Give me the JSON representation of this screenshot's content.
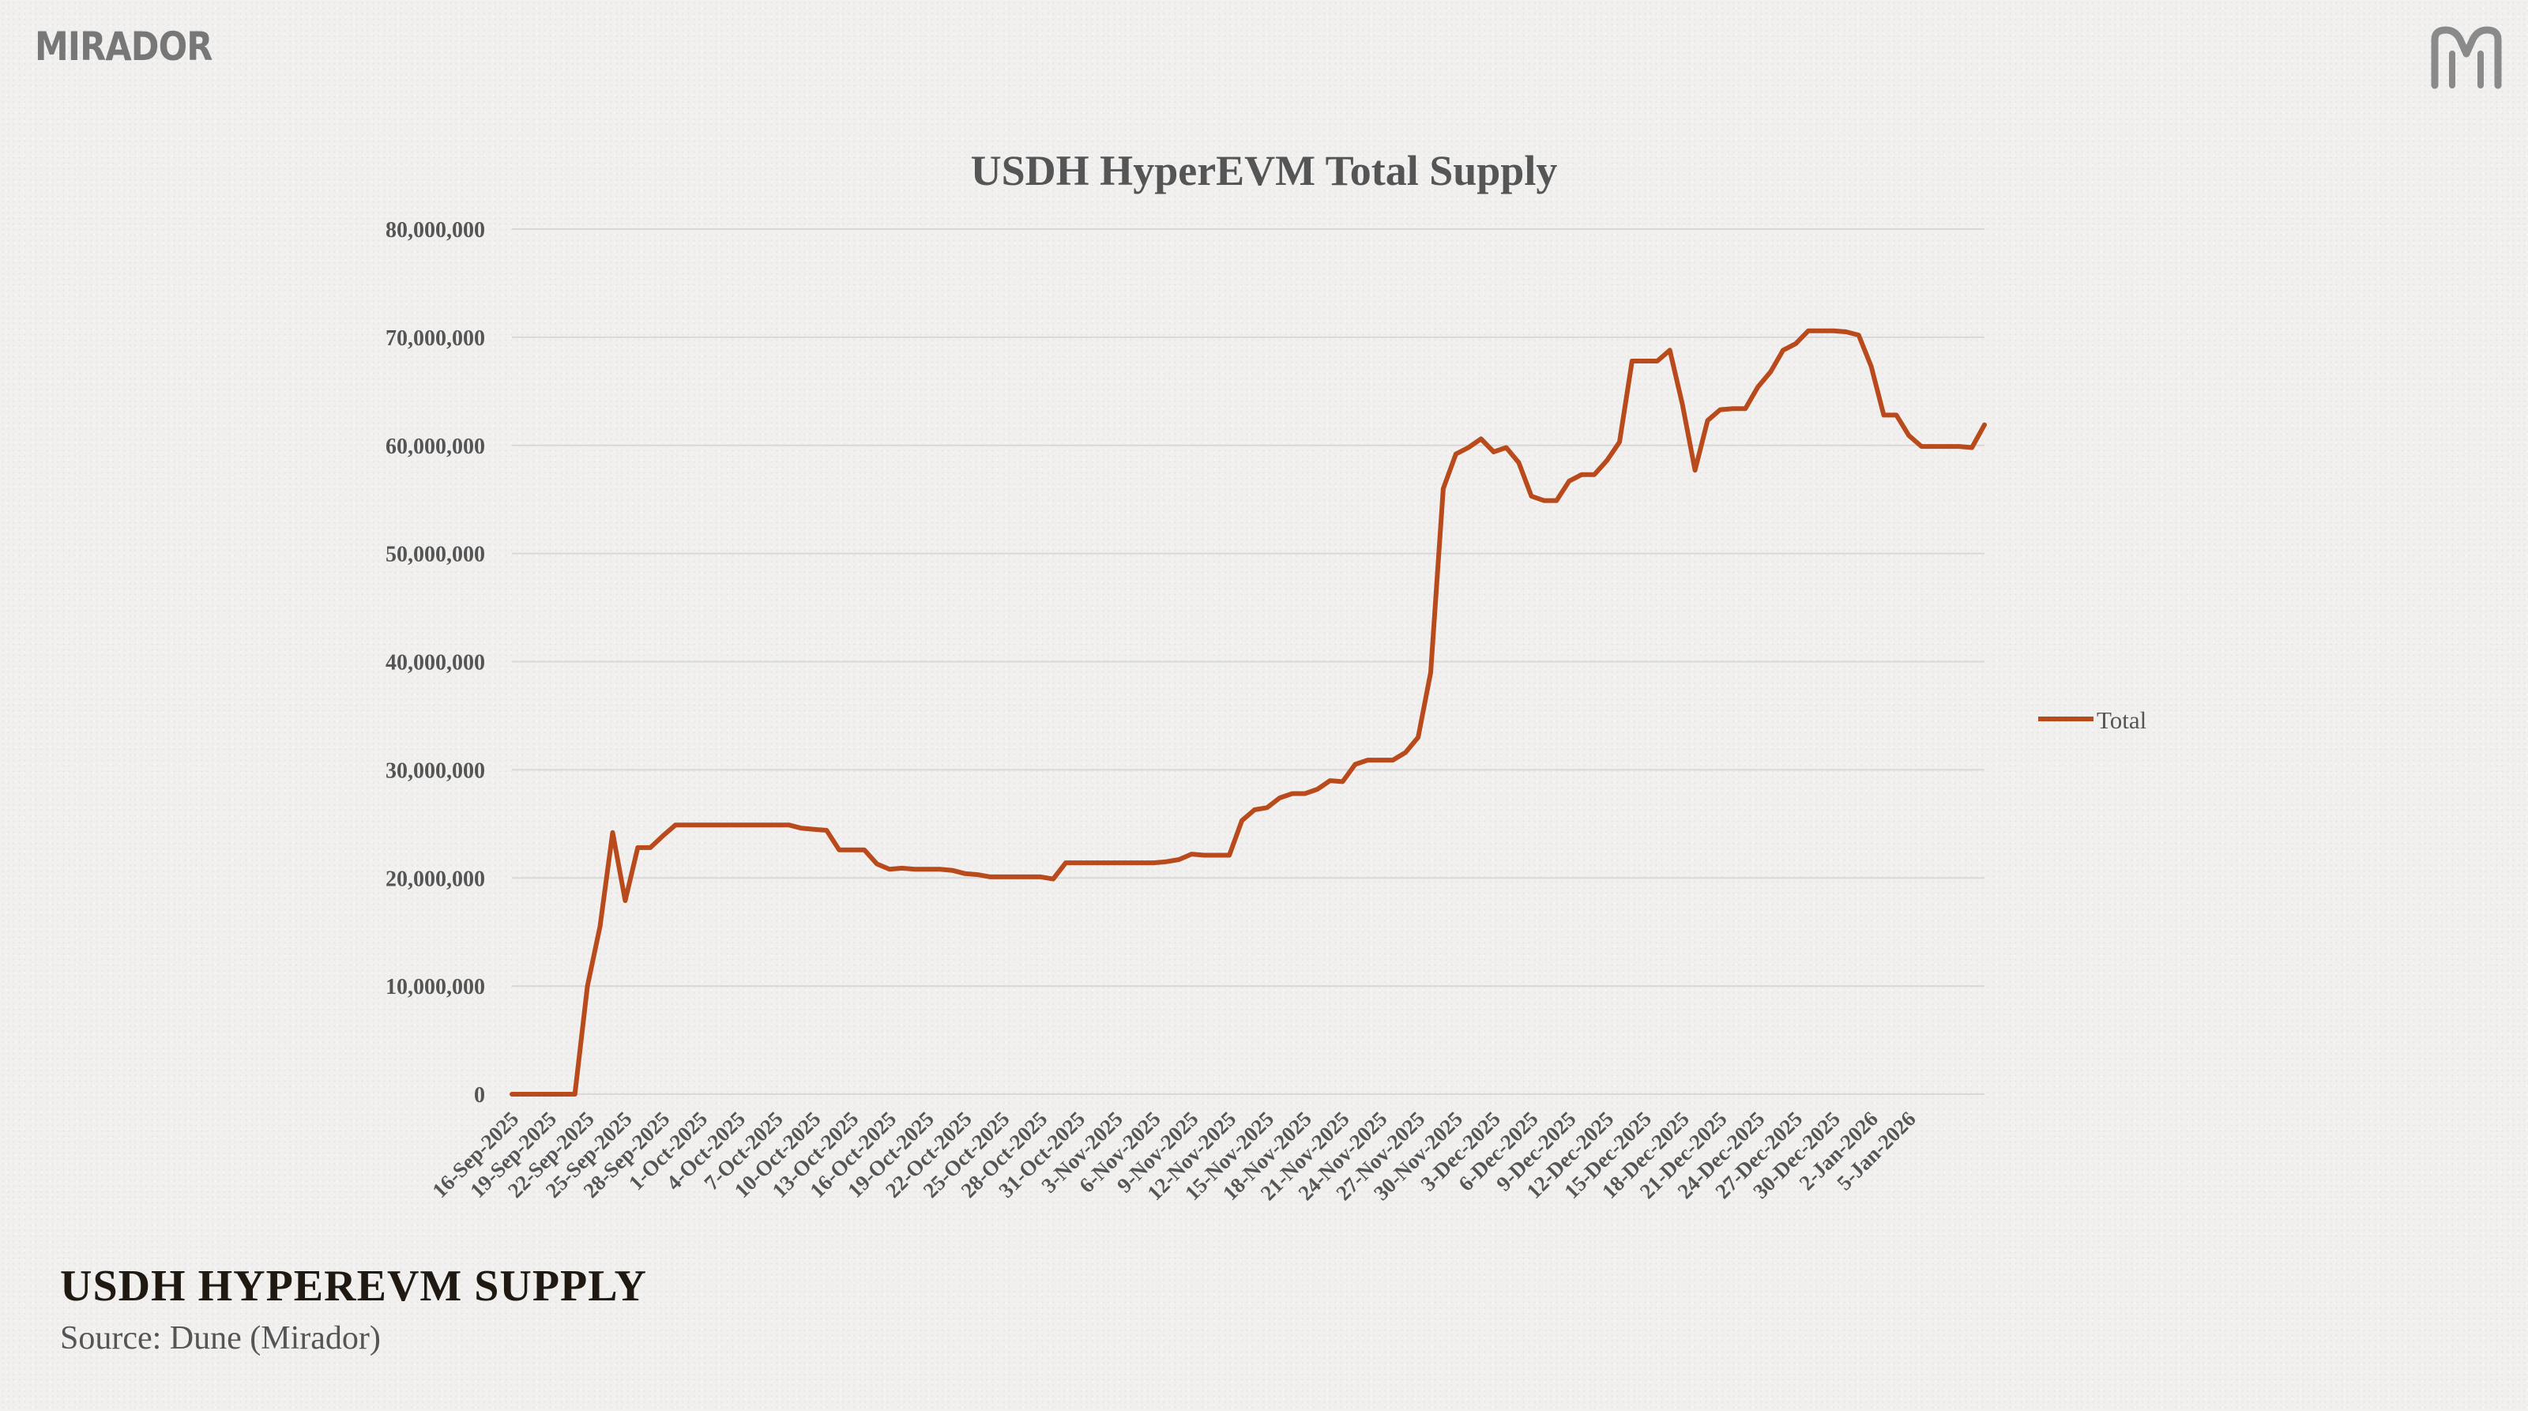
{
  "brand": {
    "name": "MIRADOR",
    "mark_icon": "mirador-m-logo-icon"
  },
  "footer": {
    "title": "USDH HYPEREVM SUPPLY",
    "source": "Source: Dune (Mirador)"
  },
  "colors": {
    "line": "#b84a1c",
    "grid": "#d8d8d8",
    "text": "#555555"
  },
  "chart_data": {
    "type": "line",
    "title": "USDH HyperEVM Total Supply",
    "xlabel": "",
    "ylabel": "",
    "ylim": [
      0,
      80000000
    ],
    "yticks": [
      0,
      10000000,
      20000000,
      30000000,
      40000000,
      50000000,
      60000000,
      70000000,
      80000000
    ],
    "ytick_labels": [
      "0",
      "10,000,000",
      "20,000,000",
      "30,000,000",
      "40,000,000",
      "50,000,000",
      "60,000,000",
      "70,000,000",
      "80,000,000"
    ],
    "xtick_labels": [
      "16-Sep-2025",
      "19-Sep-2025",
      "22-Sep-2025",
      "25-Sep-2025",
      "28-Sep-2025",
      "1-Oct-2025",
      "4-Oct-2025",
      "7-Oct-2025",
      "10-Oct-2025",
      "13-Oct-2025",
      "16-Oct-2025",
      "19-Oct-2025",
      "22-Oct-2025",
      "25-Oct-2025",
      "28-Oct-2025",
      "31-Oct-2025",
      "3-Nov-2025",
      "6-Nov-2025",
      "9-Nov-2025",
      "12-Nov-2025",
      "15-Nov-2025",
      "18-Nov-2025",
      "21-Nov-2025",
      "24-Nov-2025",
      "27-Nov-2025",
      "30-Nov-2025",
      "3-Dec-2025",
      "6-Dec-2025",
      "9-Dec-2025",
      "12-Dec-2025",
      "15-Dec-2025",
      "18-Dec-2025",
      "21-Dec-2025",
      "24-Dec-2025",
      "27-Dec-2025",
      "30-Dec-2025",
      "2-Jan-2026",
      "5-Jan-2026"
    ],
    "grid": true,
    "legend": "right",
    "series": [
      {
        "name": "Total",
        "color": "#b84a1c",
        "values": [
          0,
          0,
          0,
          0,
          0,
          0,
          10000000,
          15500000,
          24200000,
          17900000,
          22800000,
          22800000,
          23900000,
          24900000,
          24900000,
          24900000,
          24900000,
          24900000,
          24900000,
          24900000,
          24900000,
          24900000,
          24900000,
          24600000,
          24500000,
          24400000,
          22600000,
          22600000,
          22600000,
          21300000,
          20800000,
          20900000,
          20800000,
          20800000,
          20800000,
          20700000,
          20400000,
          20300000,
          20100000,
          20100000,
          20100000,
          20100000,
          20100000,
          19900000,
          21400000,
          21400000,
          21400000,
          21400000,
          21400000,
          21400000,
          21400000,
          21400000,
          21500000,
          21700000,
          22200000,
          22100000,
          22100000,
          22100000,
          25300000,
          26300000,
          26500000,
          27400000,
          27800000,
          27800000,
          28200000,
          29000000,
          28900000,
          30500000,
          30900000,
          30900000,
          30900000,
          31600000,
          33000000,
          39000000,
          56000000,
          59200000,
          59800000,
          60600000,
          59400000,
          59800000,
          58400000,
          55300000,
          54900000,
          54900000,
          56700000,
          57300000,
          57300000,
          58600000,
          60300000,
          67800000,
          67800000,
          67800000,
          68800000,
          63800000,
          57700000,
          62300000,
          63300000,
          63400000,
          63400000,
          65400000,
          66800000,
          68800000,
          69400000,
          70600000,
          70600000,
          70600000,
          70500000,
          70200000,
          67300000,
          62800000,
          62800000,
          60900000,
          59900000,
          59900000,
          59900000,
          59900000,
          59800000,
          61900000
        ]
      }
    ]
  }
}
